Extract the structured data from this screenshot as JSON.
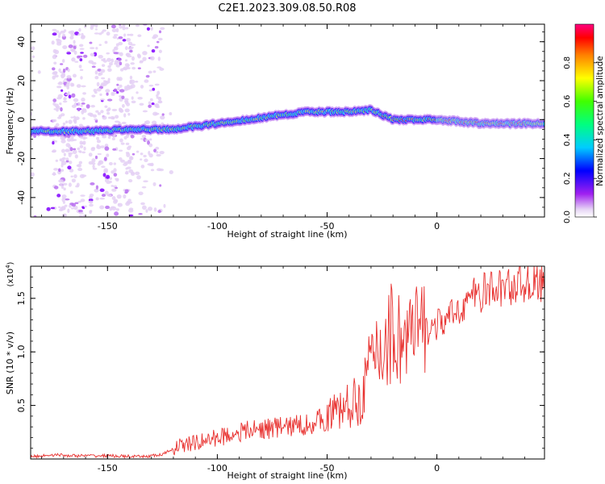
{
  "title": "C2E1.2023.309.08.50.R08",
  "chart_data": [
    {
      "type": "heatmap",
      "title": "",
      "xlabel": "Height of straight line (km)",
      "ylabel": "Frequency (Hz)",
      "xlim": [
        -185,
        49
      ],
      "ylim": [
        -50,
        49
      ],
      "x_ticks": [
        -150,
        -100,
        -50,
        0
      ],
      "y_ticks": [
        -40,
        -20,
        0,
        20,
        40
      ],
      "x_tick_labels": [
        "-150",
        "-100",
        "-50",
        "0"
      ],
      "y_tick_labels": [
        "-40",
        "-20",
        "0",
        "20",
        "40"
      ],
      "grid": false,
      "colormap": "rainbow (purple→blue→cyan→green→yellow→red→magenta)",
      "colorbar": {
        "label": "Normalized spectral amplitude",
        "range": [
          0,
          1
        ],
        "ticks": [
          0.0,
          0.2,
          0.4,
          0.6,
          0.8
        ],
        "tick_labels": [
          "0.0",
          "0.2",
          "0.4",
          "0.6",
          "0.8"
        ]
      },
      "signal_trace": {
        "description_points_x": [
          -185,
          -160,
          -140,
          -120,
          -100,
          -80,
          -60,
          -40,
          -30,
          -20,
          0,
          20,
          49
        ],
        "description_points_y": [
          -6,
          -6,
          -5,
          -5,
          -2,
          1,
          4,
          4,
          5,
          0,
          0,
          -2,
          -2
        ]
      }
    },
    {
      "type": "line",
      "title": "",
      "xlabel": "Height of straight line (km)",
      "ylabel": "SNR (10 * v/v)",
      "y_multiplier_label": "(x10",
      "y_multiplier_exp": "4",
      "y_multiplier_close": ")",
      "xlim": [
        -185,
        49
      ],
      "ylim": [
        0,
        1.8
      ],
      "x_ticks": [
        -150,
        -100,
        -50,
        0
      ],
      "y_ticks": [
        0.5,
        1.0,
        1.5
      ],
      "x_tick_labels": [
        "-150",
        "-100",
        "-50",
        "0"
      ],
      "y_tick_labels": [
        "0.5",
        "1.0",
        "1.5"
      ],
      "grid": false,
      "series": [
        {
          "color": "#e8312f",
          "x": [
            -185,
            -175,
            -165,
            -150,
            -135,
            -125,
            -118,
            -110,
            -100,
            -90,
            -80,
            -70,
            -60,
            -55,
            -50,
            -45,
            -40,
            -35,
            -30,
            -25,
            -20,
            -15,
            -10,
            -5,
            0,
            5,
            10,
            15,
            20,
            25,
            30,
            35,
            40,
            49
          ],
          "y": [
            0.02,
            0.04,
            0.03,
            0.03,
            0.02,
            0.04,
            0.12,
            0.15,
            0.2,
            0.25,
            0.28,
            0.3,
            0.32,
            0.35,
            0.38,
            0.45,
            0.5,
            0.55,
            0.9,
            1.05,
            1.2,
            1.1,
            1.15,
            1.2,
            1.25,
            1.3,
            1.4,
            1.5,
            1.55,
            1.58,
            1.6,
            1.62,
            1.65,
            1.66
          ]
        }
      ]
    }
  ]
}
